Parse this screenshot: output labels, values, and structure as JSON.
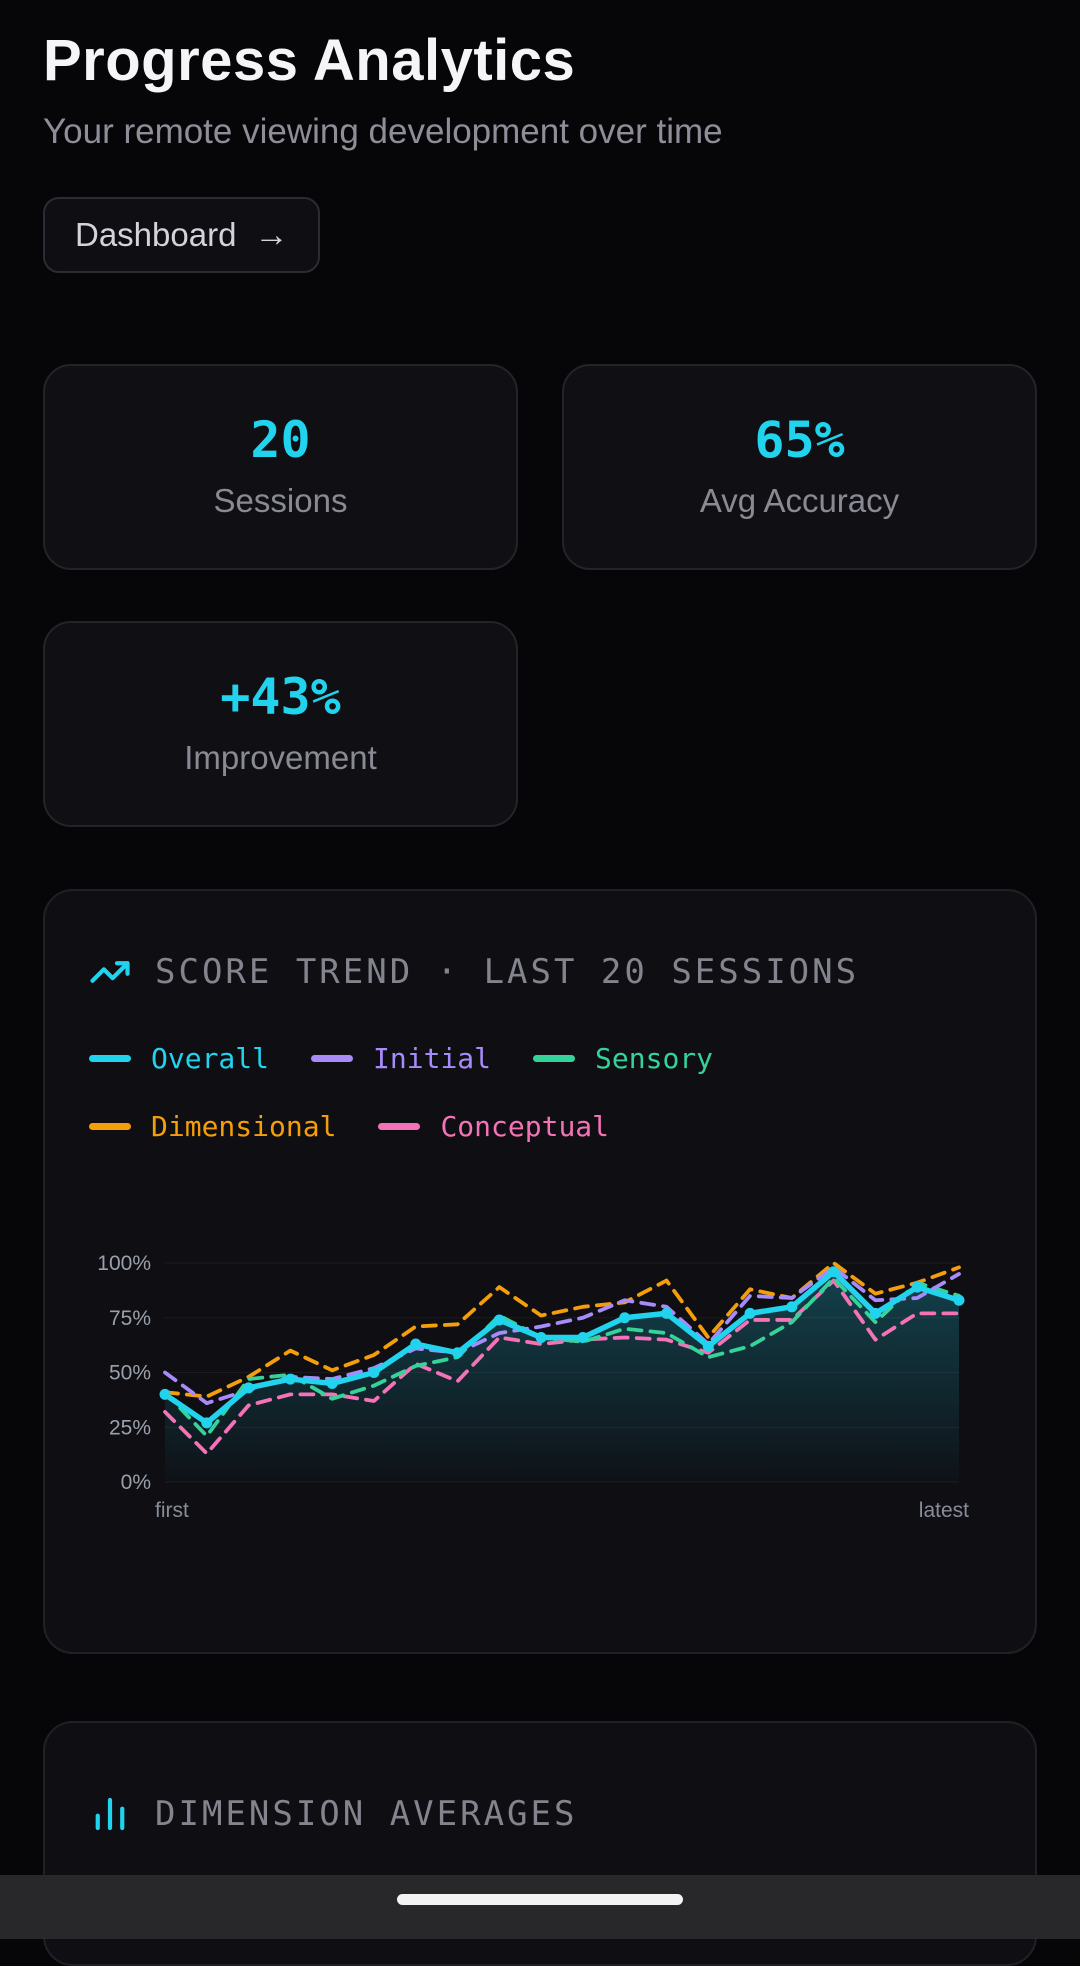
{
  "page": {
    "title": "Progress Analytics",
    "subtitle": "Your remote viewing development over time"
  },
  "nav": {
    "dashboard_label": "Dashboard",
    "arrow_glyph": "→"
  },
  "stats": [
    {
      "value": "20",
      "label": "Sessions"
    },
    {
      "value": "65%",
      "label": "Avg Accuracy"
    },
    {
      "value": "+43%",
      "label": "Improvement"
    }
  ],
  "sections": {
    "dimension_averages_title": "DIMENSION AVERAGES"
  },
  "colors": {
    "accent": "#22d3ee",
    "page_bg": "#060609",
    "card_bg": "#0e0e13",
    "card_border": "#232329",
    "muted_text": "#8a8a95",
    "axis_text": "#9aa0ab",
    "home_bar_bg": "#28282a",
    "home_pill": "#f3f3f4"
  },
  "chart_data": {
    "type": "line",
    "title": "SCORE TREND · LAST 20 SESSIONS",
    "xlabel_left": "first",
    "xlabel_right": "latest",
    "ylim": [
      0,
      100
    ],
    "yticks": [
      0,
      25,
      50,
      75,
      100
    ],
    "ytick_suffix": "%",
    "grid": true,
    "legend_position": "top",
    "n_points": 20,
    "series": [
      {
        "name": "Overall",
        "color": "#22d3ee",
        "line": "solid",
        "dots": true,
        "area": true,
        "values": [
          40,
          27,
          43,
          47,
          45,
          50,
          63,
          59,
          74,
          66,
          66,
          75,
          77,
          62,
          77,
          80,
          96,
          77,
          89,
          83
        ]
      },
      {
        "name": "Initial",
        "color": "#a78bfa",
        "line": "dashed",
        "values": [
          50,
          36,
          42,
          48,
          47,
          52,
          61,
          59,
          68,
          71,
          75,
          83,
          80,
          63,
          85,
          84,
          98,
          83,
          84,
          95
        ]
      },
      {
        "name": "Sensory",
        "color": "#34d399",
        "line": "dashed",
        "values": [
          41,
          21,
          47,
          49,
          38,
          44,
          53,
          57,
          76,
          66,
          64,
          70,
          68,
          57,
          62,
          73,
          93,
          73,
          91,
          85
        ]
      },
      {
        "name": "Dimensional",
        "color": "#f59e0b",
        "line": "dashed",
        "values": [
          41,
          39,
          48,
          60,
          51,
          58,
          71,
          72,
          89,
          76,
          80,
          82,
          92,
          66,
          88,
          84,
          100,
          86,
          91,
          98
        ]
      },
      {
        "name": "Conceptual",
        "color": "#f472b6",
        "line": "dashed",
        "values": [
          32,
          13,
          35,
          40,
          40,
          37,
          54,
          46,
          66,
          63,
          65,
          66,
          65,
          59,
          74,
          74,
          92,
          65,
          77,
          77
        ]
      }
    ]
  }
}
